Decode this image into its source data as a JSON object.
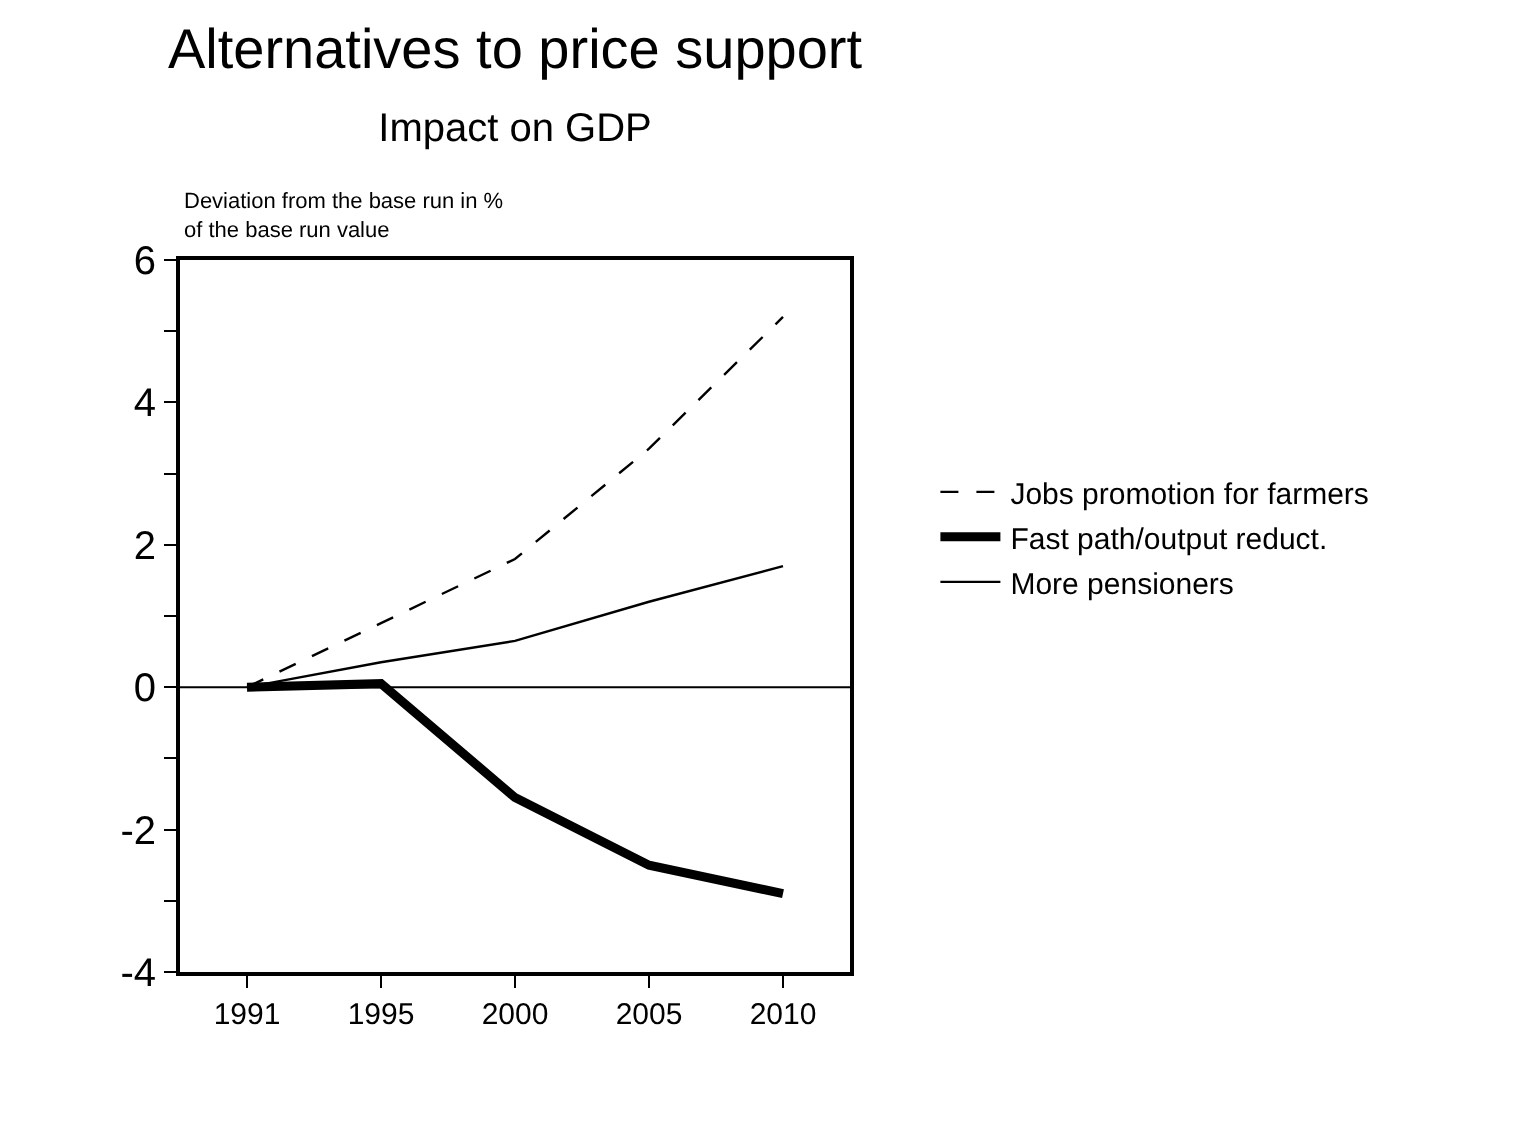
{
  "chart_data": {
    "type": "line",
    "title": "Alternatives to price support",
    "subtitle": "Impact on GDP",
    "ylabel": "Deviation from the base run in %\nof the base run value",
    "categories": [
      "1991",
      "1995",
      "2000",
      "2005",
      "2010"
    ],
    "series": [
      {
        "name": "Jobs promotion for farmers",
        "color": "#000000",
        "line_style": "dashed",
        "values": [
          0,
          0.9,
          1.8,
          3.35,
          5.2
        ]
      },
      {
        "name": "Fast path/output reduct.",
        "color": "#000000",
        "line_style": "solid",
        "values": [
          0,
          0.05,
          -1.55,
          -2.5,
          -2.9
        ]
      },
      {
        "name": "More pensioners",
        "color": "#000000",
        "line_style": "solid",
        "values": [
          0,
          0.35,
          0.65,
          1.2,
          1.7
        ]
      }
    ],
    "ylim": [
      -4,
      6
    ],
    "yticks": [
      -4,
      {
        "value": -3,
        "label": null
      },
      -2,
      {
        "value": -1,
        "label": null
      },
      0,
      {
        "value": 1,
        "label": null
      },
      2,
      {
        "value": 3,
        "label": null
      },
      4,
      {
        "value": 5,
        "label": null
      },
      6
    ],
    "ref_lines": [
      {
        "axis": "y",
        "value": 0,
        "color": "#000000"
      }
    ],
    "grid": false,
    "legend": "right",
    "marker": "none"
  }
}
